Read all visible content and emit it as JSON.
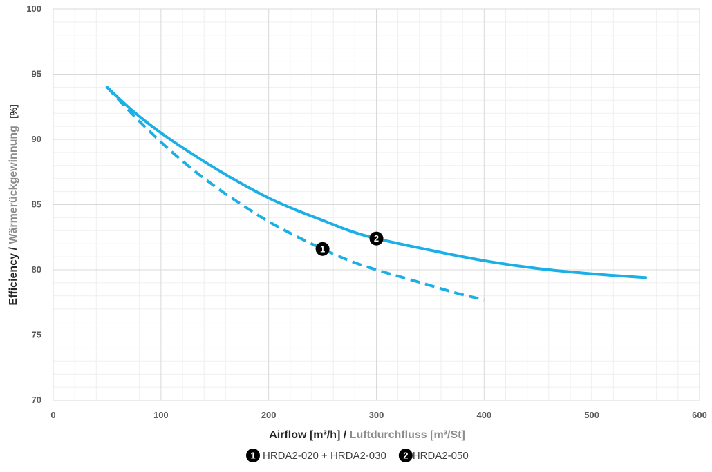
{
  "chart_data": {
    "type": "line",
    "xlabel": {
      "primary": "Airflow [m³/h]",
      "separator": " / ",
      "secondary": "Luftdurchfluss [m³/St]"
    },
    "ylabel": {
      "primary": "Efficiency",
      "separator": " / ",
      "secondary": "Wärmerückgewinnung",
      "unit": "[%]"
    },
    "xlim": [
      0,
      600
    ],
    "ylim": [
      70,
      100
    ],
    "x_ticks": [
      0,
      100,
      200,
      300,
      400,
      500,
      600
    ],
    "y_ticks": [
      70,
      75,
      80,
      85,
      90,
      95,
      100
    ],
    "grid": true,
    "minor_grid": true,
    "legend_position": "bottom-center",
    "series": [
      {
        "id": "1",
        "marker_label": "1",
        "name": "HRDA2-020 + HRDA2-030",
        "style": "dashed",
        "color": "#1BAFE6",
        "marker_at": {
          "x": 250,
          "y": 81.6
        },
        "points": [
          {
            "x": 50,
            "y": 94.0
          },
          {
            "x": 75,
            "y": 91.8
          },
          {
            "x": 100,
            "y": 89.8
          },
          {
            "x": 125,
            "y": 88.0
          },
          {
            "x": 150,
            "y": 86.4
          },
          {
            "x": 175,
            "y": 85.0
          },
          {
            "x": 200,
            "y": 83.7
          },
          {
            "x": 225,
            "y": 82.6
          },
          {
            "x": 250,
            "y": 81.6
          },
          {
            "x": 275,
            "y": 80.7
          },
          {
            "x": 300,
            "y": 80.0
          },
          {
            "x": 325,
            "y": 79.4
          },
          {
            "x": 350,
            "y": 78.8
          },
          {
            "x": 375,
            "y": 78.2
          },
          {
            "x": 400,
            "y": 77.7
          }
        ]
      },
      {
        "id": "2",
        "marker_label": "2",
        "name": "HRDA2-050",
        "style": "solid",
        "color": "#1BAFE6",
        "marker_at": {
          "x": 300,
          "y": 82.4
        },
        "points": [
          {
            "x": 50,
            "y": 94.0
          },
          {
            "x": 75,
            "y": 92.1
          },
          {
            "x": 100,
            "y": 90.5
          },
          {
            "x": 125,
            "y": 89.1
          },
          {
            "x": 150,
            "y": 87.8
          },
          {
            "x": 175,
            "y": 86.6
          },
          {
            "x": 200,
            "y": 85.5
          },
          {
            "x": 225,
            "y": 84.6
          },
          {
            "x": 250,
            "y": 83.8
          },
          {
            "x": 275,
            "y": 83.0
          },
          {
            "x": 300,
            "y": 82.4
          },
          {
            "x": 350,
            "y": 81.5
          },
          {
            "x": 400,
            "y": 80.7
          },
          {
            "x": 450,
            "y": 80.1
          },
          {
            "x": 500,
            "y": 79.7
          },
          {
            "x": 550,
            "y": 79.4
          }
        ]
      }
    ]
  },
  "colors": {
    "line": "#1BAFE6",
    "marker_fill": "#000000",
    "marker_text": "#ffffff",
    "grid_major": "#D9D9D9",
    "grid_minor": "#EFEFEF",
    "tick_text": "#595959",
    "title_primary": "#262626",
    "title_secondary": "#8C8C8C"
  },
  "legend": {
    "items": [
      {
        "marker_label": "1",
        "name": "HRDA2-020 + HRDA2-030"
      },
      {
        "marker_label": "2",
        "name": "HRDA2-050"
      }
    ]
  }
}
